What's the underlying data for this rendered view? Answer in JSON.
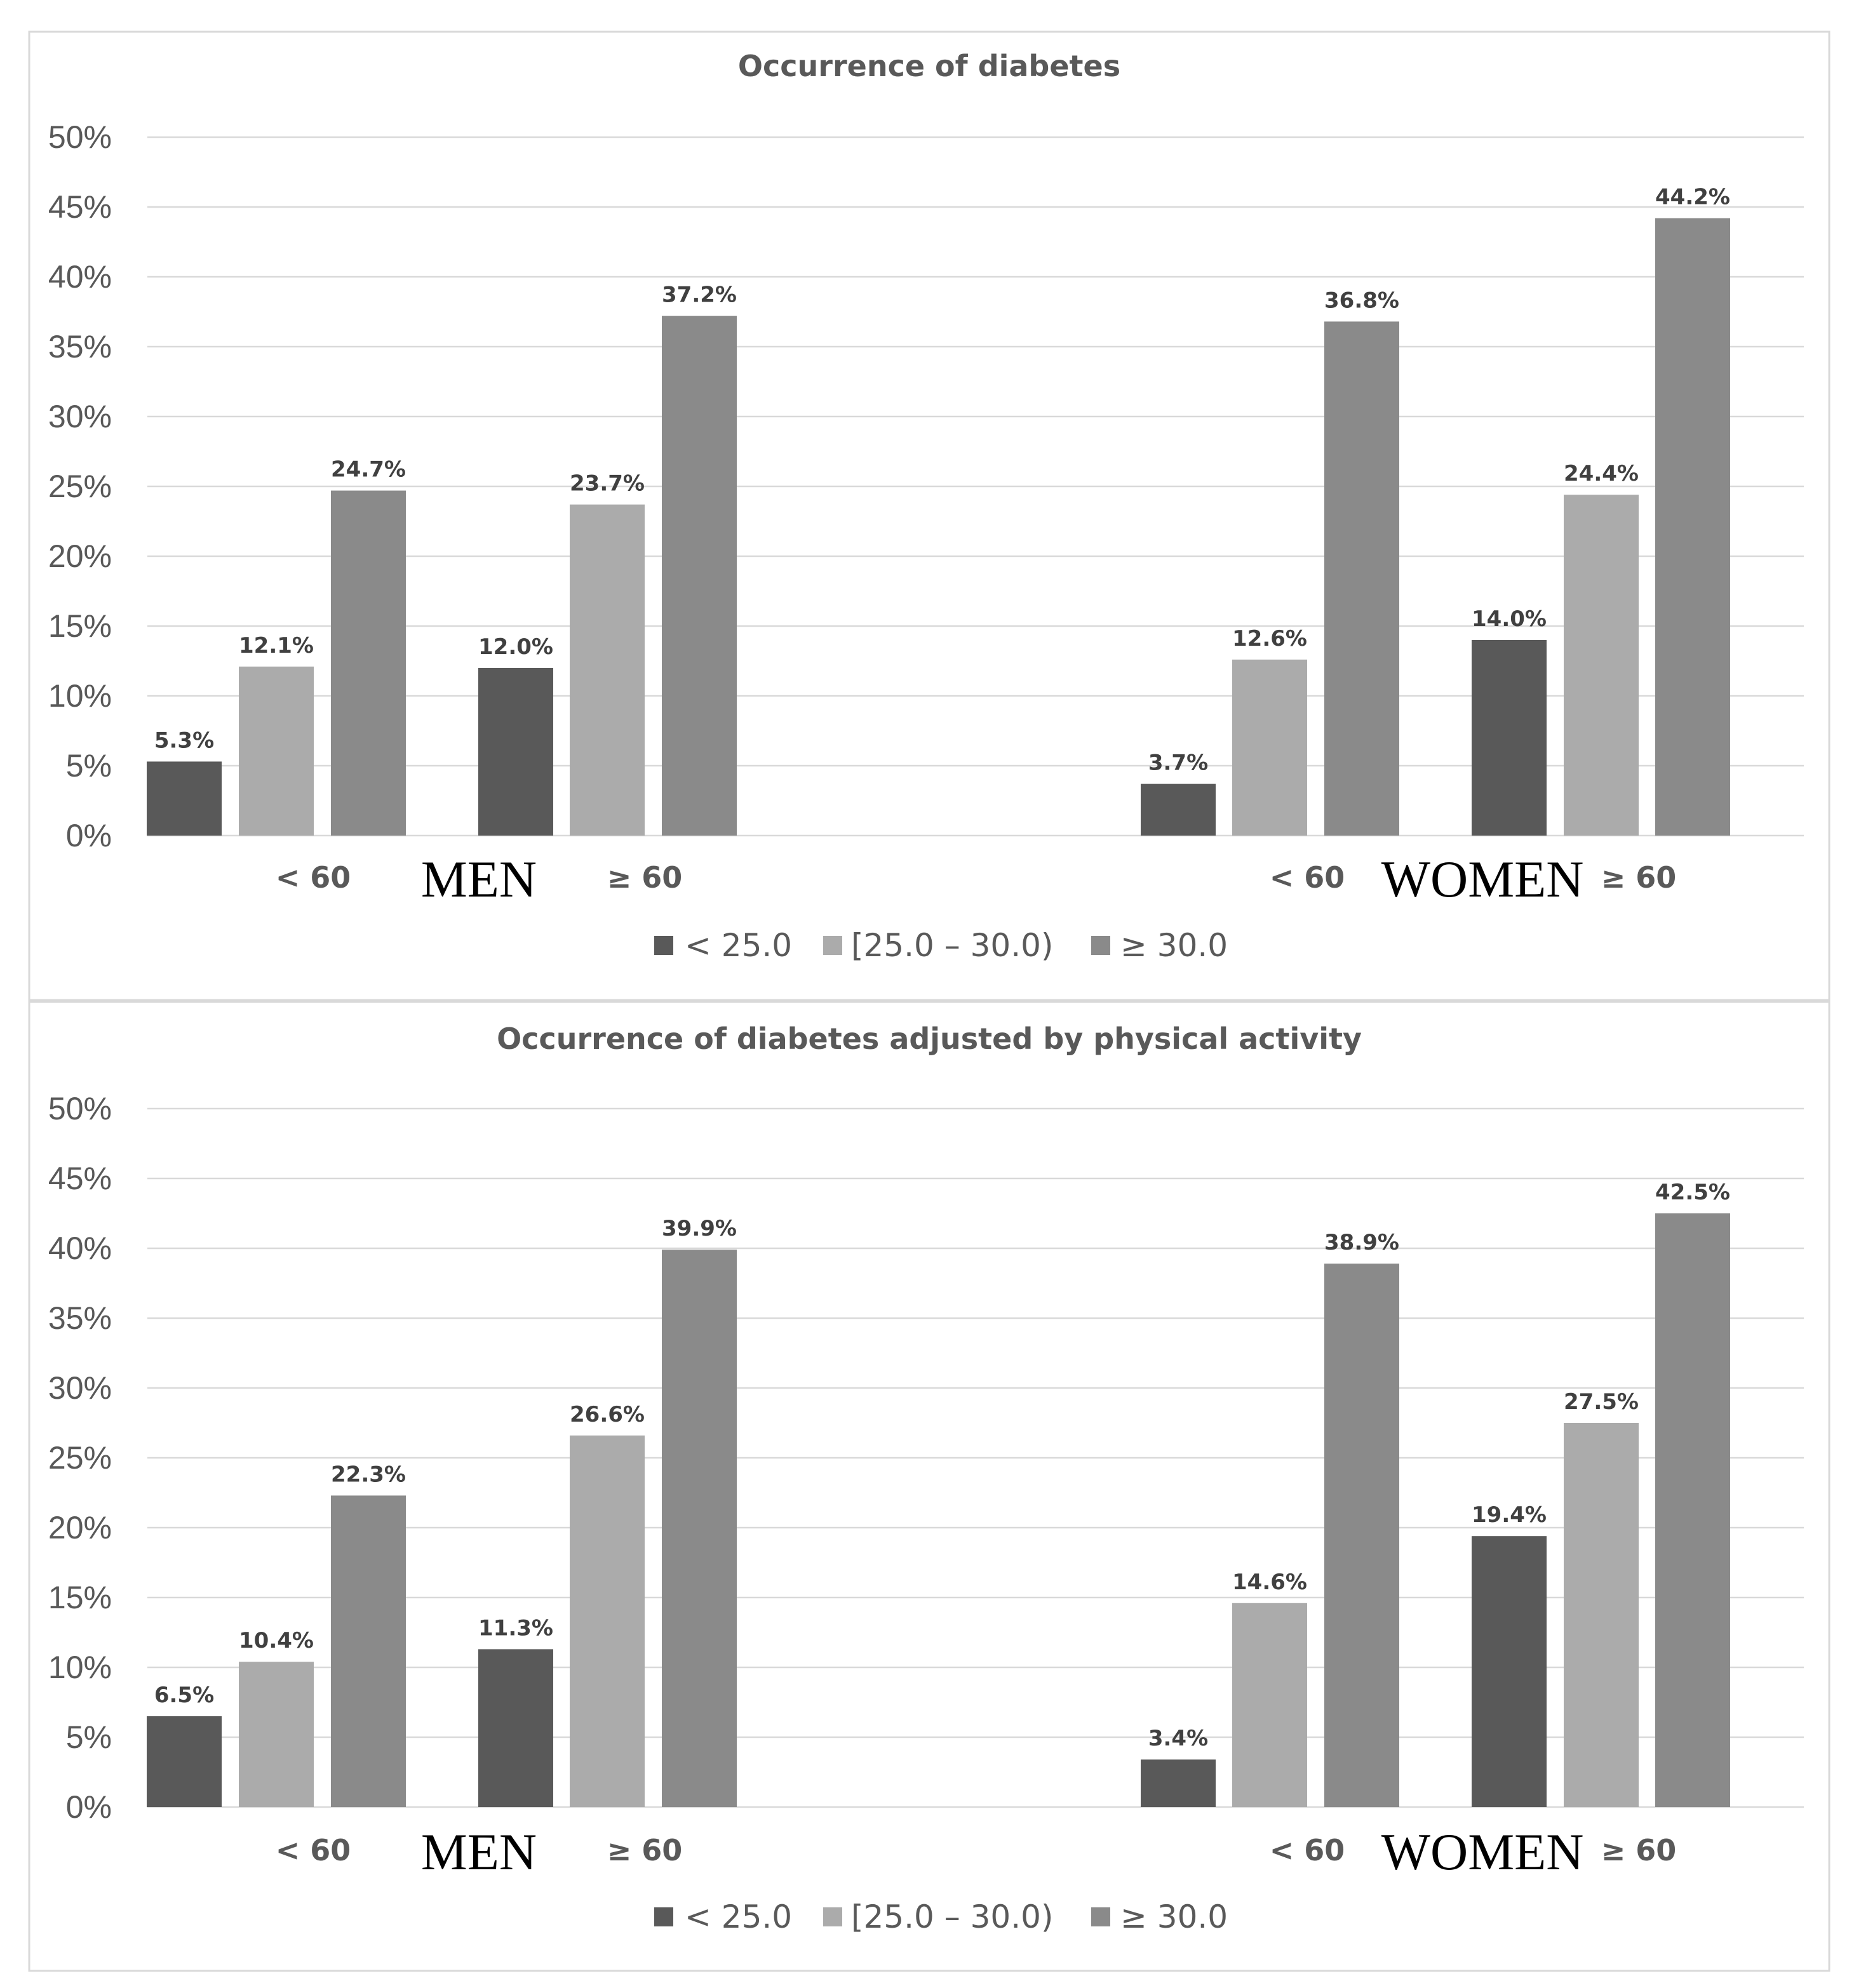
{
  "colors": {
    "lt25": "#595959",
    "b25_30": "#ababab",
    "ge30": "#8a8a8a",
    "grid": "#d9d9d9",
    "text": "#595959",
    "label": "#404040",
    "border": "#d9d9d9"
  },
  "chart_data": [
    {
      "type": "bar",
      "title": "Occurrence of diabetes",
      "categories": [
        "< 60",
        "≥ 60",
        "< 60",
        "≥ 60"
      ],
      "groups": [
        "MEN",
        "WOMEN"
      ],
      "ylim": [
        0,
        50
      ],
      "yticks": [
        "0%",
        "5%",
        "10%",
        "15%",
        "20%",
        "25%",
        "30%",
        "35%",
        "40%",
        "45%",
        "50%"
      ],
      "series": [
        {
          "name": "< 25.0",
          "values": [
            5.3,
            12.0,
            3.7,
            14.0
          ],
          "labels": [
            "5.3%",
            "12.0%",
            "3.7%",
            "14.0%"
          ]
        },
        {
          "name": "[25.0 – 30.0)",
          "values": [
            12.1,
            23.7,
            12.6,
            24.4
          ],
          "labels": [
            "12.1%",
            "23.7%",
            "12.6%",
            "24.4%"
          ]
        },
        {
          "name": "≥ 30.0",
          "values": [
            24.7,
            37.2,
            36.8,
            44.2
          ],
          "labels": [
            "24.7%",
            "37.2%",
            "36.8%",
            "44.2%"
          ]
        }
      ],
      "legend_position": "bottom",
      "grid": true
    },
    {
      "type": "bar",
      "title": "Occurrence of diabetes adjusted by physical activity",
      "categories": [
        "< 60",
        "≥ 60",
        "< 60",
        "≥ 60"
      ],
      "groups": [
        "MEN",
        "WOMEN"
      ],
      "ylim": [
        0,
        50
      ],
      "yticks": [
        "0%",
        "5%",
        "10%",
        "15%",
        "20%",
        "25%",
        "30%",
        "35%",
        "40%",
        "45%",
        "50%"
      ],
      "series": [
        {
          "name": "< 25.0",
          "values": [
            6.5,
            11.3,
            3.4,
            19.4
          ],
          "labels": [
            "6.5%",
            "11.3%",
            "3.4%",
            "19.4%"
          ]
        },
        {
          "name": "[25.0 – 30.0)",
          "values": [
            10.4,
            26.6,
            14.6,
            27.5
          ],
          "labels": [
            "10.4%",
            "26.6%",
            "14.6%",
            "27.5%"
          ]
        },
        {
          "name": "≥ 30.0",
          "values": [
            22.3,
            39.9,
            38.9,
            42.5
          ],
          "labels": [
            "22.3%",
            "39.9%",
            "38.9%",
            "42.5%"
          ]
        }
      ],
      "legend_position": "bottom",
      "grid": true
    }
  ]
}
